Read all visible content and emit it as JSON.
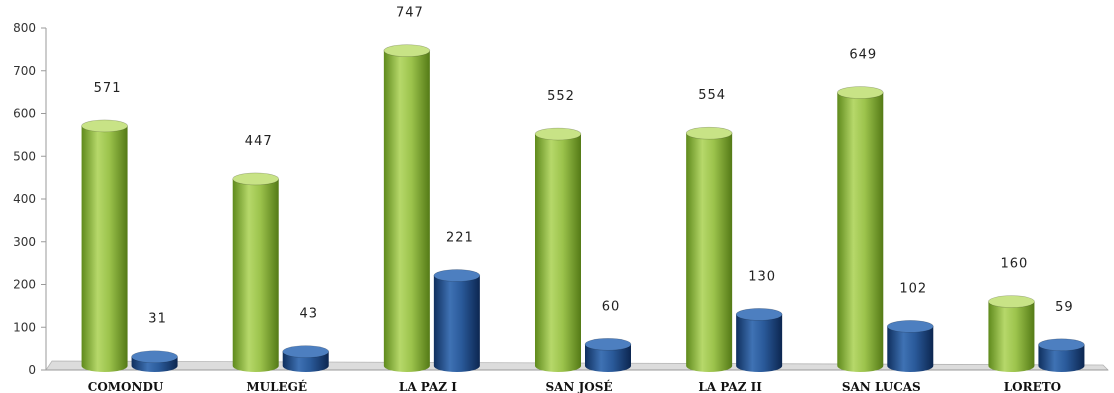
{
  "chart_data": {
    "type": "bar",
    "title": "",
    "xlabel": "",
    "ylabel": "",
    "ylim": [
      0,
      800
    ],
    "yticks": [
      0,
      100,
      200,
      300,
      400,
      500,
      600,
      700,
      800
    ],
    "grid": false,
    "legend": "none",
    "categories": [
      "COMONDU",
      "MULEGÉ",
      "LA PAZ I",
      "SAN JOSÉ",
      "LA PAZ II",
      "SAN LUCAS",
      "LORETO"
    ],
    "series": [
      {
        "values": [
          571,
          447,
          747,
          552,
          554,
          649,
          160
        ],
        "color": "#8db33a",
        "data_labels": [
          "571",
          "447",
          "747",
          "552",
          "554",
          "649",
          "160"
        ]
      },
      {
        "values": [
          31,
          43,
          221,
          60,
          130,
          102,
          59
        ],
        "color": "#1f4e8a",
        "data_labels": [
          "31",
          "43",
          "221",
          "60",
          "130",
          "102",
          "59"
        ]
      }
    ]
  }
}
